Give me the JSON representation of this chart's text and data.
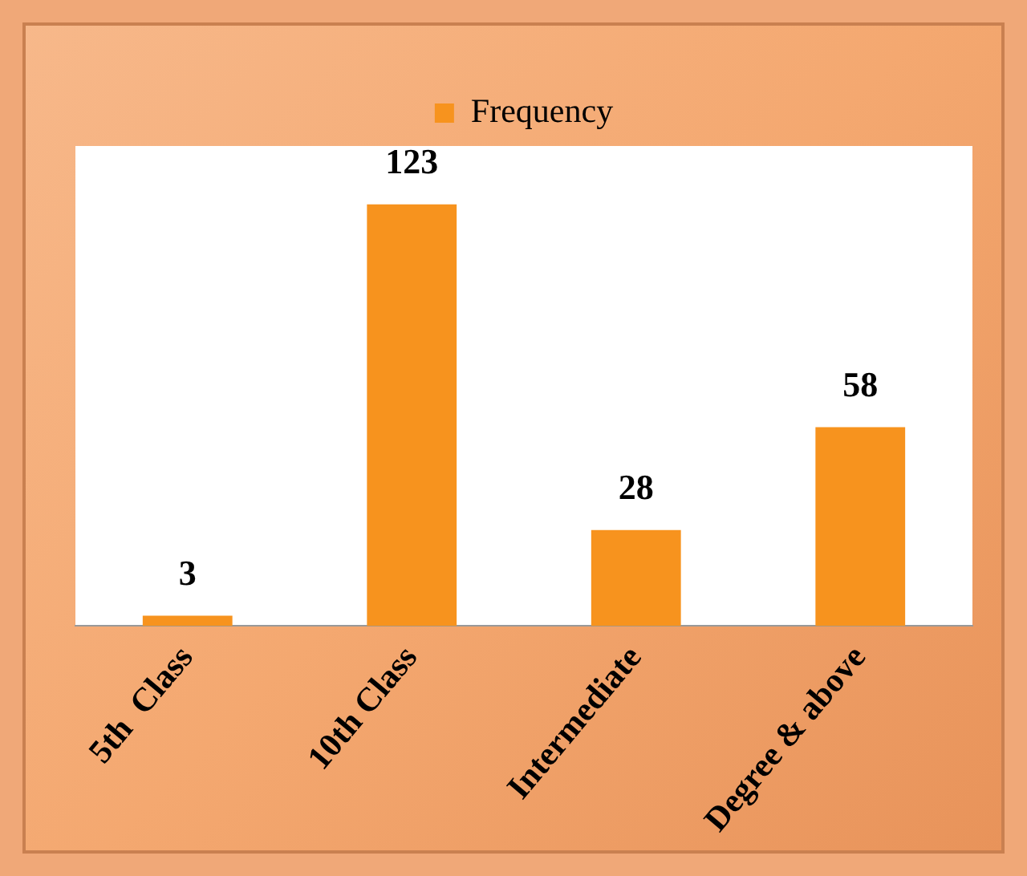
{
  "chart_data": {
    "type": "bar",
    "categories": [
      "5th  Class",
      "10th Class",
      "Intermediate",
      "Degree & above"
    ],
    "series": [
      {
        "name": "Frequency",
        "color": "#f7931e",
        "values": [
          3,
          123,
          28,
          58
        ]
      }
    ],
    "data_labels": true,
    "legend": "top",
    "grid": false
  }
}
